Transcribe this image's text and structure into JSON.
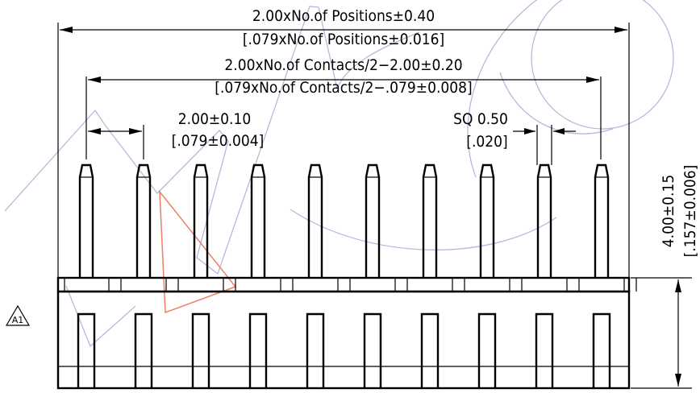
{
  "dimensions": {
    "positions_metric": "2.00xNo.of  Positions±0.40",
    "positions_inch": "[.079xNo.of  Positions±0.016]",
    "contacts_metric": "2.00xNo.of  Contacts/2−2.00±0.20",
    "contacts_inch": "[.079xNo.of  Contacts/2−.079±0.008]",
    "pitch_metric": "2.00±0.10",
    "pitch_inch": "[.079±0.004]",
    "sq_metric": "SQ  0.50",
    "sq_inch": "[.020]",
    "height_metric": "4.00±0.15",
    "height_inch": "[.157±0.006]"
  },
  "revision_mark": "A1",
  "pin_count": 10,
  "colors": {
    "line": "#000000",
    "watermark": "#b8b8dc",
    "watermark_accent": "#ec7f66"
  }
}
